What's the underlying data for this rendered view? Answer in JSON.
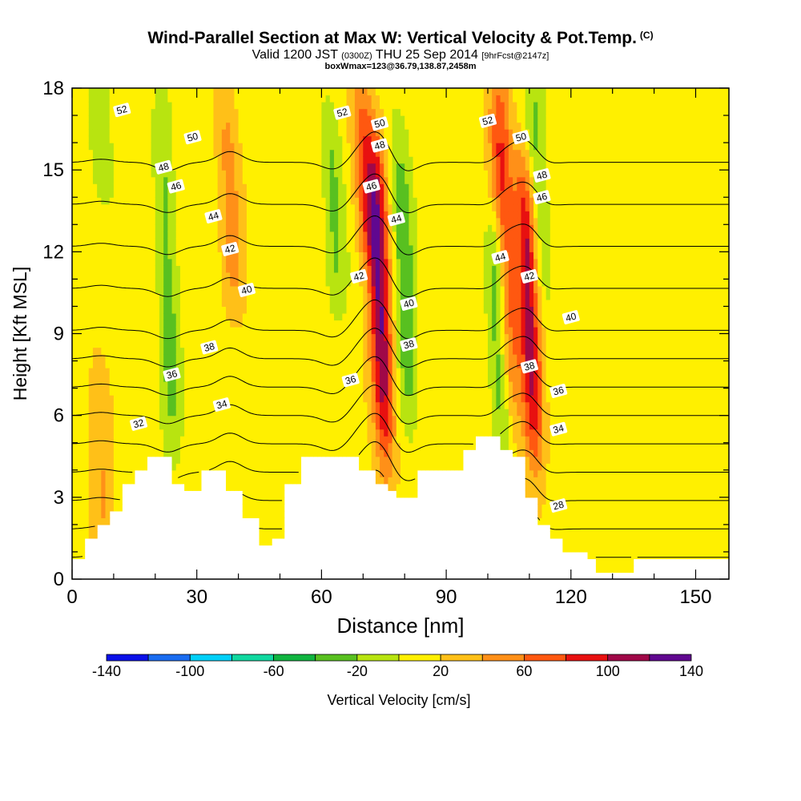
{
  "header": {
    "title": "Wind-Parallel Section at Max W: Vertical Velocity & Pot.Temp.",
    "copyright": "(C)",
    "valid_main": "Valid 1200 JST",
    "valid_utc": "(0300Z)",
    "valid_date": "THU 25 Sep 2014",
    "forecast": "[9hrFcst@2147z]",
    "box_info": "boxWmax=123@36.79,138.87,2458m"
  },
  "chart_data": {
    "type": "heatmap",
    "xlabel": "Distance [nm]",
    "ylabel": "Height [Kft MSL]",
    "xlim": [
      0,
      158
    ],
    "ylim": [
      0,
      18
    ],
    "x_ticks": [
      0,
      30,
      60,
      90,
      120,
      150
    ],
    "y_ticks": [
      0,
      3,
      6,
      9,
      12,
      15,
      18
    ],
    "colorbar": {
      "label": "Vertical Velocity [cm/s]",
      "ticks": [
        -140,
        -100,
        -60,
        -20,
        20,
        60,
        100,
        140
      ],
      "bins": [
        -140,
        -120,
        -100,
        -80,
        -60,
        -40,
        -20,
        0,
        20,
        40,
        60,
        80,
        100,
        120,
        140
      ],
      "colors": [
        "#0a10e8",
        "#1a6cf0",
        "#00d0f8",
        "#10d8a0",
        "#10b440",
        "#58c020",
        "#b8e410",
        "#fff000",
        "#ffc018",
        "#ff9018",
        "#ff5810",
        "#e81010",
        "#a00848",
        "#600890"
      ]
    },
    "vertical_velocity_features": [
      {
        "x": 74,
        "zmin": 4.5,
        "zmax": 16,
        "w": 110
      },
      {
        "x": 110,
        "zmin": 4.5,
        "zmax": 15,
        "w": 100
      },
      {
        "x": 104,
        "zmin": 6,
        "zmax": 18,
        "w": 80
      },
      {
        "x": 103,
        "zmin": 5,
        "zmax": 13,
        "w": -70
      },
      {
        "x": 80,
        "zmin": 6,
        "zmax": 16,
        "w": -50
      },
      {
        "x": 112,
        "zmin": 10,
        "zmax": 18,
        "w": -40
      },
      {
        "x": 23,
        "zmin": 5,
        "zmax": 17,
        "w": -40
      },
      {
        "x": 63,
        "zmin": 10,
        "zmax": 17,
        "w": -35
      },
      {
        "x": 38,
        "zmin": 10,
        "zmax": 18,
        "w": 35
      },
      {
        "x": 7,
        "zmin": 14,
        "zmax": 18,
        "w": -30
      },
      {
        "x": 7,
        "zmin": 1,
        "zmax": 8,
        "w": 30
      },
      {
        "x": 70,
        "zmin": 12,
        "zmax": 18,
        "w": 45
      }
    ],
    "terrain": [
      {
        "x": 0,
        "top": 0.7
      },
      {
        "x": 3,
        "top": 1.4
      },
      {
        "x": 6,
        "top": 2.1
      },
      {
        "x": 9,
        "top": 2.6
      },
      {
        "x": 12,
        "top": 3.4
      },
      {
        "x": 15,
        "top": 3.9
      },
      {
        "x": 18,
        "top": 4.5
      },
      {
        "x": 24,
        "top": 3.6
      },
      {
        "x": 27,
        "top": 3.3
      },
      {
        "x": 31,
        "top": 3.9
      },
      {
        "x": 37,
        "top": 3.3
      },
      {
        "x": 41,
        "top": 2.3
      },
      {
        "x": 45,
        "top": 1.3
      },
      {
        "x": 48,
        "top": 1.6
      },
      {
        "x": 51,
        "top": 3.6
      },
      {
        "x": 55,
        "top": 4.5
      },
      {
        "x": 69,
        "top": 3.9
      },
      {
        "x": 73,
        "top": 3.6
      },
      {
        "x": 76,
        "top": 3.3
      },
      {
        "x": 78,
        "top": 2.9
      },
      {
        "x": 83,
        "top": 3.9
      },
      {
        "x": 89,
        "top": 3.9
      },
      {
        "x": 94,
        "top": 4.8
      },
      {
        "x": 97,
        "top": 5.2
      },
      {
        "x": 103,
        "top": 4.8
      },
      {
        "x": 106,
        "top": 4.5
      },
      {
        "x": 109,
        "top": 2.9
      },
      {
        "x": 112,
        "top": 2.0
      },
      {
        "x": 115,
        "top": 1.6
      },
      {
        "x": 118,
        "top": 1.0
      },
      {
        "x": 124,
        "top": 0.7
      },
      {
        "x": 126,
        "top": 0.3
      },
      {
        "x": 135,
        "top": 0.7
      },
      {
        "x": 158,
        "top": 0.7
      }
    ],
    "isentrope_levels": [
      28,
      30,
      32,
      34,
      36,
      38,
      40,
      42,
      44,
      46,
      48,
      50,
      52
    ],
    "isentrope_labels": [
      {
        "text": "52",
        "x": 12,
        "y": 17.2
      },
      {
        "text": "50",
        "x": 29,
        "y": 16.2
      },
      {
        "text": "48",
        "x": 22,
        "y": 15.1
      },
      {
        "text": "46",
        "x": 25,
        "y": 14.4
      },
      {
        "text": "44",
        "x": 34,
        "y": 13.3
      },
      {
        "text": "42",
        "x": 38,
        "y": 12.1
      },
      {
        "text": "40",
        "x": 42,
        "y": 10.6
      },
      {
        "text": "38",
        "x": 33,
        "y": 8.5
      },
      {
        "text": "36",
        "x": 24,
        "y": 7.5
      },
      {
        "text": "34",
        "x": 36,
        "y": 6.4
      },
      {
        "text": "32",
        "x": 16,
        "y": 5.7
      },
      {
        "text": "52",
        "x": 65,
        "y": 17.1
      },
      {
        "text": "50",
        "x": 74,
        "y": 16.7
      },
      {
        "text": "48",
        "x": 74,
        "y": 15.9
      },
      {
        "text": "46",
        "x": 72,
        "y": 14.4
      },
      {
        "text": "44",
        "x": 78,
        "y": 13.2
      },
      {
        "text": "42",
        "x": 69,
        "y": 11.1
      },
      {
        "text": "40",
        "x": 81,
        "y": 10.1
      },
      {
        "text": "38",
        "x": 81,
        "y": 8.6
      },
      {
        "text": "36",
        "x": 67,
        "y": 7.3
      },
      {
        "text": "52",
        "x": 100,
        "y": 16.8
      },
      {
        "text": "50",
        "x": 108,
        "y": 16.2
      },
      {
        "text": "48",
        "x": 113,
        "y": 14.8
      },
      {
        "text": "46",
        "x": 113,
        "y": 14.0
      },
      {
        "text": "44",
        "x": 103,
        "y": 11.8
      },
      {
        "text": "42",
        "x": 110,
        "y": 11.1
      },
      {
        "text": "40",
        "x": 120,
        "y": 9.6
      },
      {
        "text": "38",
        "x": 110,
        "y": 7.8
      },
      {
        "text": "36",
        "x": 117,
        "y": 6.9
      },
      {
        "text": "34",
        "x": 117,
        "y": 5.5
      },
      {
        "text": "28",
        "x": 117,
        "y": 2.7
      }
    ]
  }
}
